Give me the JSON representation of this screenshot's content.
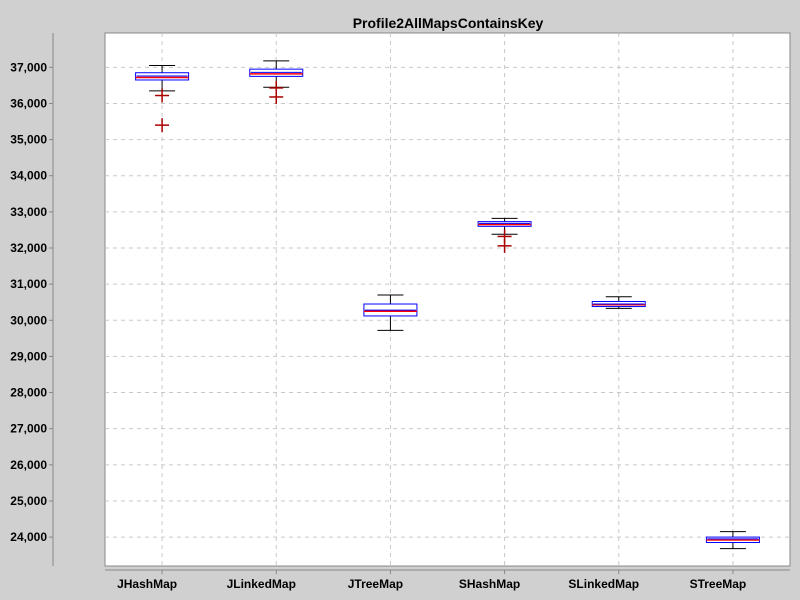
{
  "chart_data": {
    "type": "box",
    "title": "Profile2AllMapsContainsKey",
    "xlabel": "",
    "ylabel": "",
    "ylim": [
      23200,
      37950
    ],
    "y_ticks": [
      24000,
      25000,
      26000,
      27000,
      28000,
      29000,
      30000,
      31000,
      32000,
      33000,
      34000,
      35000,
      36000,
      37000
    ],
    "y_tick_labels": [
      "24,000",
      "25,000",
      "26,000",
      "27,000",
      "28,000",
      "29,000",
      "30,000",
      "31,000",
      "32,000",
      "33,000",
      "34,000",
      "35,000",
      "36,000",
      "37,000"
    ],
    "grid": true,
    "categories": [
      "JHashMap",
      "JLinkedMap",
      "JTreeMap",
      "SHashMap",
      "SLinkedMap",
      "STreeMap"
    ],
    "boxes": [
      {
        "category": "JHashMap",
        "whisker_low": 36350,
        "q1": 36650,
        "median": 36720,
        "mean": 36760,
        "q3": 36850,
        "whisker_high": 37050,
        "outliers": [
          36220,
          35400
        ]
      },
      {
        "category": "JLinkedMap",
        "whisker_low": 36450,
        "q1": 36750,
        "median": 36820,
        "mean": 36860,
        "q3": 36950,
        "whisker_high": 37180,
        "outliers": [
          36430,
          36180
        ]
      },
      {
        "category": "JTreeMap",
        "whisker_low": 29720,
        "q1": 30120,
        "median": 30250,
        "mean": 30280,
        "q3": 30450,
        "whisker_high": 30700,
        "outliers": []
      },
      {
        "category": "SHashMap",
        "whisker_low": 32380,
        "q1": 32600,
        "median": 32650,
        "mean": 32680,
        "q3": 32730,
        "whisker_high": 32820,
        "outliers": [
          32320,
          32060
        ]
      },
      {
        "category": "SLinkedMap",
        "whisker_low": 30330,
        "q1": 30380,
        "median": 30430,
        "mean": 30450,
        "q3": 30520,
        "whisker_high": 30650,
        "outliers": []
      },
      {
        "category": "STreeMap",
        "whisker_low": 23680,
        "q1": 23850,
        "median": 23920,
        "mean": 23950,
        "q3": 24000,
        "whisker_high": 24150,
        "outliers": []
      }
    ],
    "colors": {
      "page_bg": "#d0d0d0",
      "plot_bg": "#ffffff",
      "grid": "#c8c8c8",
      "box": "#0000ff",
      "median": "#ff0000",
      "outlier": "#aa0000",
      "whisker": "#000000"
    }
  }
}
